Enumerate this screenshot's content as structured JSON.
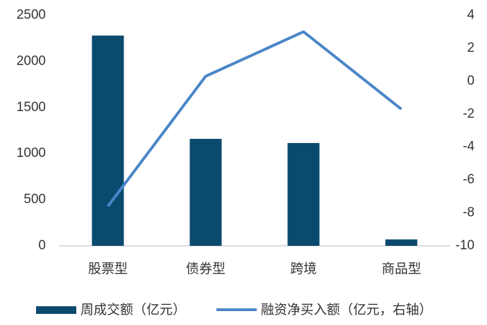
{
  "chart_data": {
    "type": "bar",
    "categories": [
      "股票型",
      "债券型",
      "跨境",
      "商品型"
    ],
    "series": [
      {
        "name": "周成交额（亿元）",
        "type": "bar",
        "color": "#0b4a6f",
        "values": [
          2280,
          1160,
          1115,
          70
        ]
      },
      {
        "name": "融资净买入额（亿元，右轴）",
        "type": "line",
        "axis": "y2",
        "color": "#4a86c8",
        "values": [
          -7.6,
          0.3,
          3.0,
          -1.7
        ]
      }
    ],
    "ylim": [
      0,
      2500
    ],
    "yticks": [
      0,
      500,
      1000,
      1500,
      2000,
      2500
    ],
    "y2lim": [
      -10,
      4
    ],
    "y2ticks": [
      -10,
      -8,
      -6,
      -4,
      -2,
      0,
      2,
      4
    ],
    "legend": "bottom"
  }
}
